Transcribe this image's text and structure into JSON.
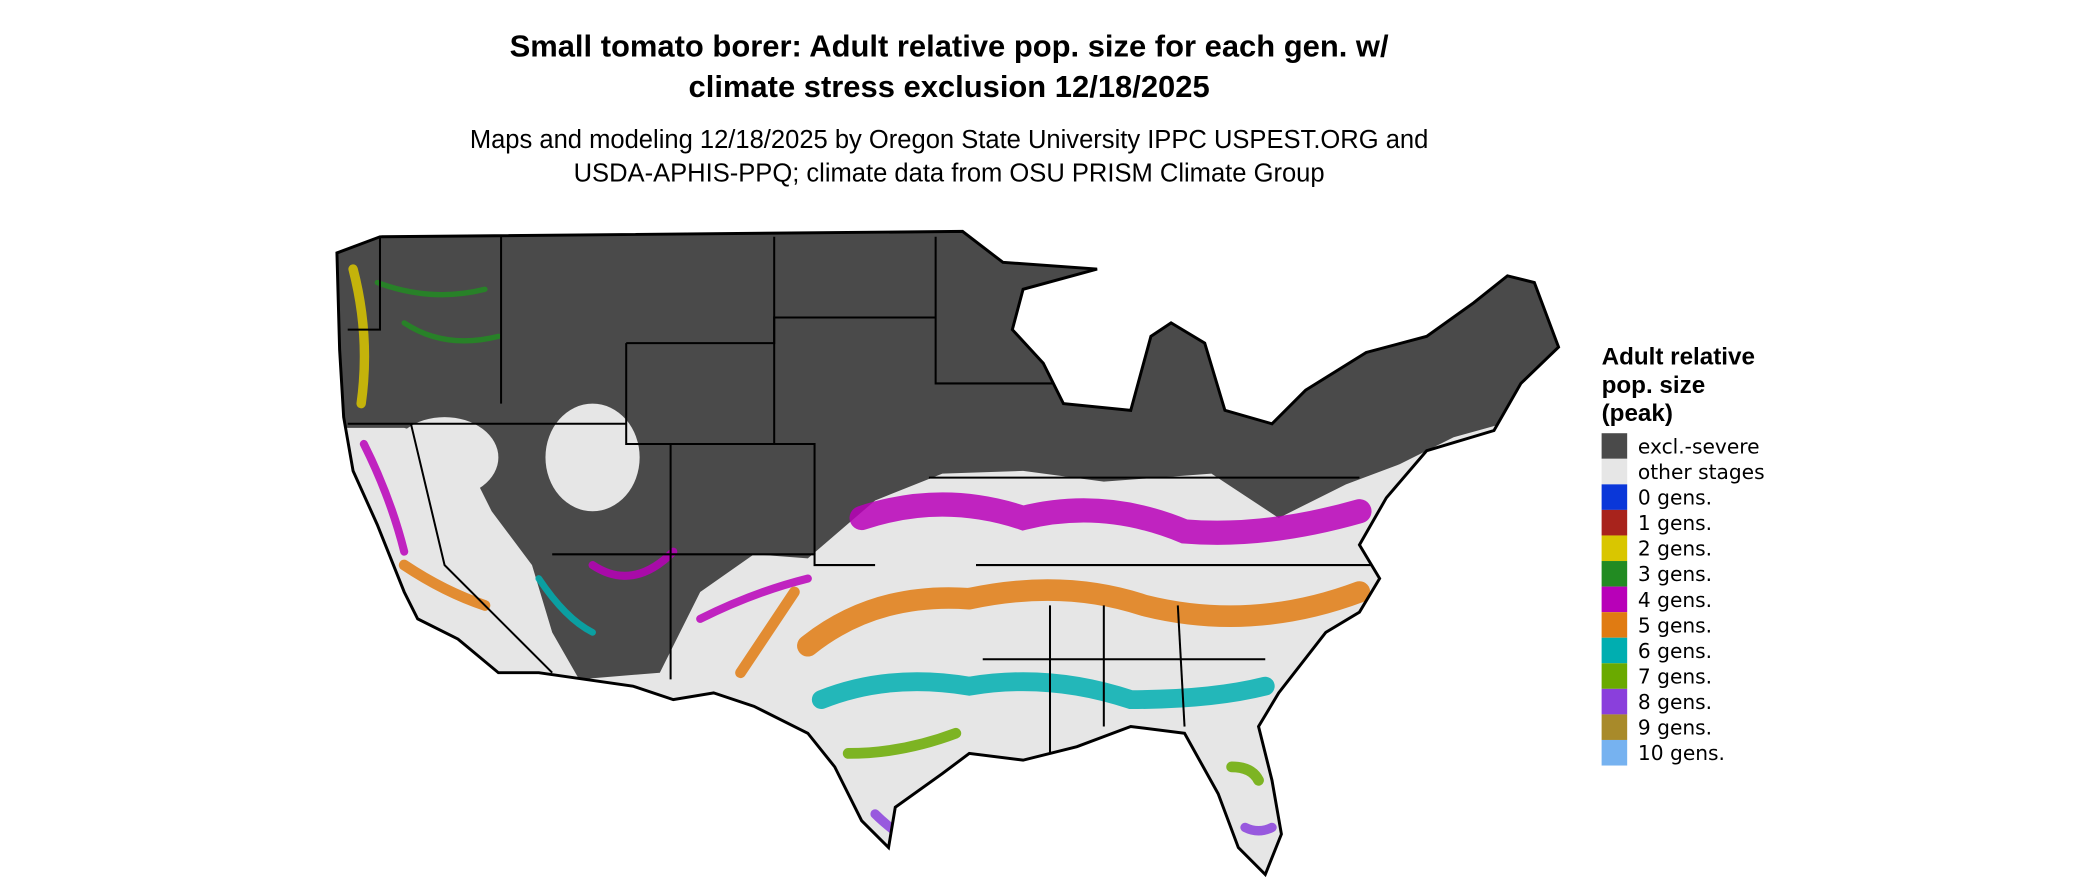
{
  "title_lines": [
    "Small tomato borer: Adult relative pop. size for each gen. w/",
    "climate stress exclusion 12/18/2025"
  ],
  "subtitle_lines": [
    "Maps and modeling 12/18/2025 by Oregon State University IPPC USPEST.ORG and",
    "USDA-APHIS-PPQ; climate data from OSU PRISM Climate Group"
  ],
  "legend": {
    "title_lines": [
      "Adult relative",
      "pop. size",
      "(peak)"
    ],
    "items": [
      {
        "label": "excl.-severe",
        "color": "#4a4a4a"
      },
      {
        "label": "other stages",
        "color": "#e6e6e6"
      },
      {
        "label": "0 gens.",
        "color": "#0a37d9"
      },
      {
        "label": "1 gens.",
        "color": "#a8231c"
      },
      {
        "label": "2 gens.",
        "color": "#d9c600"
      },
      {
        "label": "3 gens.",
        "color": "#228b22"
      },
      {
        "label": "4 gens.",
        "color": "#b800b8"
      },
      {
        "label": "5 gens.",
        "color": "#e07b12"
      },
      {
        "label": "6 gens.",
        "color": "#00aeb0"
      },
      {
        "label": "7 gens.",
        "color": "#6aaa00"
      },
      {
        "label": "8 gens.",
        "color": "#8a3fdc"
      },
      {
        "label": "9 gens.",
        "color": "#a88a2a"
      },
      {
        "label": "10 gens.",
        "color": "#76b2f0"
      }
    ]
  }
}
